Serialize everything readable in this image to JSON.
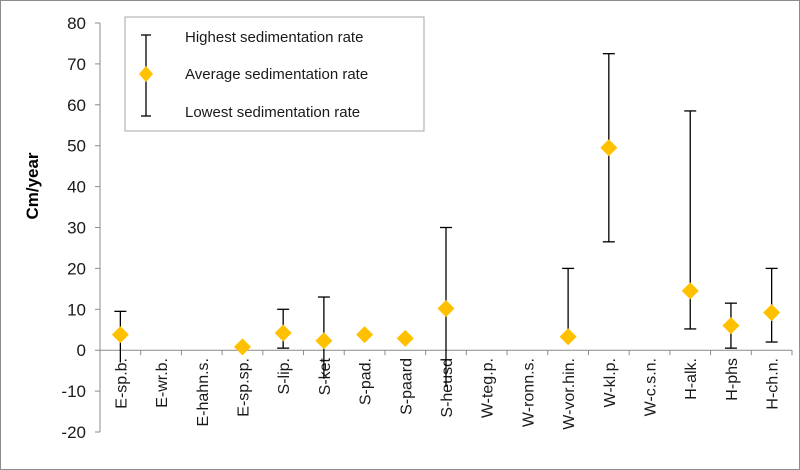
{
  "chart_data": {
    "type": "scatter",
    "title": "",
    "xlabel": "",
    "ylabel": "Cm/year",
    "ylim": [
      -20,
      80
    ],
    "yticks": [
      80,
      70,
      60,
      50,
      40,
      30,
      20,
      10,
      0,
      -10,
      -20
    ],
    "grid": false,
    "legend_position": "top-left",
    "categories": [
      "E-sp.b.",
      "E-wr.b.",
      "E-hahn.s.",
      "E-sp.sp.",
      "S-lip.",
      "S-ket",
      "S-pad.",
      "S-paard",
      "S-heusd",
      "W-teg.p.",
      "W-ronn.s.",
      "W-vor.hin.",
      "W-kl.p.",
      "W-c.s.n.",
      "H-alk.",
      "H-phs",
      "H-ch.n."
    ],
    "series": [
      {
        "name": "Highest sedimentation rate",
        "values": [
          9.5,
          null,
          null,
          null,
          10,
          13,
          null,
          null,
          30,
          null,
          null,
          20,
          72.5,
          null,
          58.5,
          11.5,
          20
        ]
      },
      {
        "name": "Average sedimentation rate",
        "values": [
          3.8,
          null,
          null,
          0.8,
          4.2,
          2.3,
          3.8,
          2.9,
          10.2,
          null,
          null,
          3.3,
          49.5,
          null,
          14.5,
          6,
          9.2
        ]
      },
      {
        "name": "Lowest sedimentation rate",
        "values": [
          -3,
          null,
          null,
          null,
          0.5,
          -7,
          null,
          null,
          -9,
          null,
          null,
          null,
          26.5,
          null,
          5.2,
          0.5,
          2
        ]
      }
    ],
    "colors": {
      "marker": "#FFC000",
      "errorbar": "#000000",
      "axis": "#8c8c8c"
    }
  }
}
